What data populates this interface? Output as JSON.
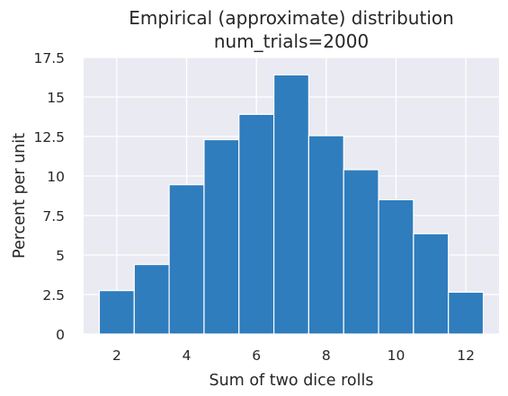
{
  "chart_data": {
    "type": "bar",
    "title_lines": [
      "Empirical (approximate) distribution",
      "num_trials=2000"
    ],
    "xlabel": "Sum of two dice rolls",
    "ylabel": "Percent per unit",
    "x": [
      2,
      3,
      4,
      5,
      6,
      7,
      8,
      9,
      10,
      11,
      12
    ],
    "values": [
      2.75,
      4.4,
      9.45,
      12.3,
      13.9,
      16.4,
      12.55,
      10.4,
      8.5,
      6.35,
      2.65
    ],
    "xlim": [
      1.05,
      12.95
    ],
    "ylim": [
      0,
      17.5
    ],
    "xticks": [
      2,
      4,
      6,
      8,
      10,
      12
    ],
    "xtick_labels": [
      "2",
      "4",
      "6",
      "8",
      "10",
      "12"
    ],
    "yticks": [
      0,
      2.5,
      5,
      7.5,
      10,
      12.5,
      15,
      17.5
    ],
    "ytick_labels": [
      "0",
      "2.5",
      "5",
      "7.5",
      "10",
      "12.5",
      "15",
      "17.5"
    ],
    "grid": true,
    "bar_color": "#2f7dbd",
    "background_color": "#eaeaf2"
  }
}
